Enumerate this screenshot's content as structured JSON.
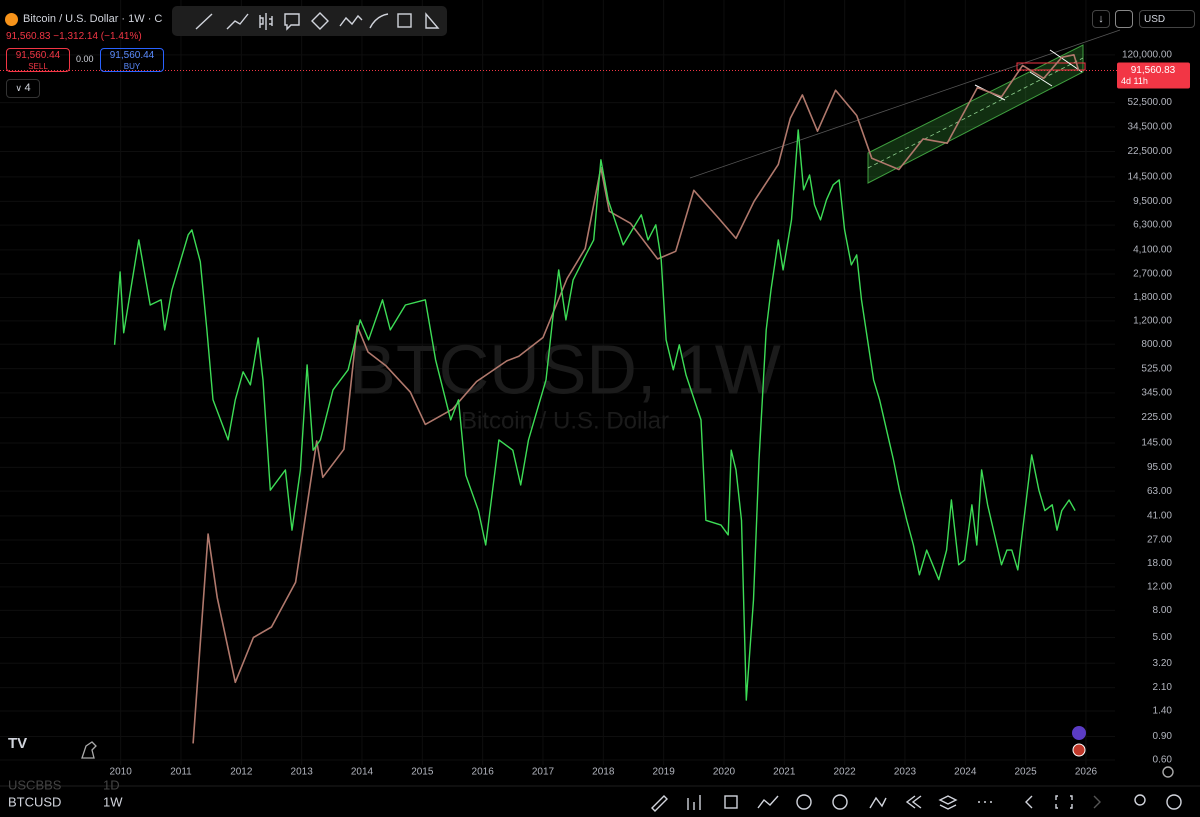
{
  "header": {
    "symbol_title": "Bitcoin / U.S. Dollar · 1W · C",
    "price_line": "91,560.83 −1,312.14 (−1.41%)",
    "sell_price": "91,560.44",
    "sell_label": "SELL",
    "spread": "0.00",
    "buy_price": "91,560.44",
    "buy_label": "BUY",
    "indicator_count": "4",
    "currency": "USD"
  },
  "chart_data": {
    "type": "line",
    "watermark_title": "BTCUSD, 1W",
    "watermark_subtitle": "Bitcoin / U.S. Dollar",
    "log_scale": true,
    "grid": true,
    "xlim": [
      2008,
      2026.73
    ],
    "xticks": [
      2010,
      2011,
      2012,
      2013,
      2014,
      2015,
      2016,
      2017,
      2018,
      2019,
      2020,
      2021,
      2022,
      2023,
      2024,
      2025,
      2026
    ],
    "ylim": [
      0.55,
      310000
    ],
    "yticks": [
      {
        "value": 120000,
        "label": "120,000.00"
      },
      {
        "value": 52500,
        "label": "52,500.00"
      },
      {
        "value": 34500,
        "label": "34,500.00"
      },
      {
        "value": 22500,
        "label": "22,500.00"
      },
      {
        "value": 14500,
        "label": "14,500.00"
      },
      {
        "value": 9500,
        "label": "9,500.00"
      },
      {
        "value": 6300,
        "label": "6,300.00"
      },
      {
        "value": 4100,
        "label": "4,100.00"
      },
      {
        "value": 2700,
        "label": "2,700.00"
      },
      {
        "value": 1800,
        "label": "1,800.00"
      },
      {
        "value": 1200,
        "label": "1,200.00"
      },
      {
        "value": 800,
        "label": "800.00"
      },
      {
        "value": 525,
        "label": "525.00"
      },
      {
        "value": 345,
        "label": "345.00"
      },
      {
        "value": 225,
        "label": "225.00"
      },
      {
        "value": 145,
        "label": "145.00"
      },
      {
        "value": 95,
        "label": "95.00"
      },
      {
        "value": 63,
        "label": "63.00"
      },
      {
        "value": 41,
        "label": "41.00"
      },
      {
        "value": 27,
        "label": "27.00"
      },
      {
        "value": 18,
        "label": "18.00"
      },
      {
        "value": 12,
        "label": "12.00"
      },
      {
        "value": 8,
        "label": "8.00"
      },
      {
        "value": 5,
        "label": "5.00"
      },
      {
        "value": 3.2,
        "label": "3.20"
      },
      {
        "value": 2.1,
        "label": "2.10"
      },
      {
        "value": 1.4,
        "label": "1.40"
      },
      {
        "value": 0.9,
        "label": "0.90"
      },
      {
        "value": 0.6,
        "label": "0.60"
      }
    ],
    "series": [
      {
        "name": "BTCUSD",
        "color": "#b0786c",
        "x": [
          2011.2,
          2011.45,
          2011.6,
          2011.9,
          2012.2,
          2012.5,
          2012.9,
          2013.25,
          2013.35,
          2013.7,
          2013.92,
          2014.1,
          2014.4,
          2014.8,
          2015.05,
          2015.5,
          2015.9,
          2016.4,
          2016.6,
          2017.0,
          2017.4,
          2017.7,
          2017.96,
          2018.1,
          2018.45,
          2018.9,
          2019.2,
          2019.5,
          2019.9,
          2020.2,
          2020.5,
          2020.9,
          2021.1,
          2021.3,
          2021.55,
          2021.85,
          2022.2,
          2022.45,
          2022.9,
          2023.3,
          2023.7,
          2024.2,
          2024.6,
          2024.95,
          2025.3,
          2025.6,
          2025.8,
          2025.88
        ],
        "values": [
          0.8,
          30,
          10,
          2.3,
          5,
          6,
          13,
          150,
          80,
          130,
          1100,
          700,
          550,
          350,
          200,
          260,
          420,
          600,
          650,
          900,
          2500,
          4200,
          17000,
          8000,
          6500,
          3500,
          4000,
          11500,
          7200,
          5000,
          9500,
          18000,
          40000,
          60000,
          32000,
          65000,
          42000,
          20000,
          16500,
          28000,
          26000,
          68000,
          58000,
          100000,
          80000,
          115000,
          120000,
          91560
        ]
      },
      {
        "name": "USCBBS",
        "color": "#3ddc56",
        "x": [
          2009.9,
          2009.99,
          2010.05,
          2010.3,
          2010.49,
          2010.67,
          2010.73,
          2010.85,
          2011.12,
          2011.18,
          2011.32,
          2011.43,
          2011.53,
          2011.78,
          2011.9,
          2012.03,
          2012.15,
          2012.28,
          2012.36,
          2012.48,
          2012.73,
          2012.84,
          2012.98,
          2013.09,
          2013.19,
          2013.31,
          2013.52,
          2013.77,
          2013.97,
          2014.11,
          2014.34,
          2014.47,
          2014.72,
          2015.05,
          2015.22,
          2015.47,
          2015.6,
          2015.72,
          2015.93,
          2016.05,
          2016.27,
          2016.5,
          2016.63,
          2016.76,
          2017.05,
          2017.16,
          2017.26,
          2017.38,
          2017.5,
          2017.71,
          2017.84,
          2017.96,
          2018.08,
          2018.33,
          2018.63,
          2018.74,
          2018.87,
          2018.96,
          2019.04,
          2019.16,
          2019.26,
          2019.37,
          2019.62,
          2019.7,
          2019.95,
          2020.07,
          2020.12,
          2020.2,
          2020.29,
          2020.37,
          2020.49,
          2020.58,
          2020.7,
          2020.78,
          2020.9,
          2020.98,
          2021.12,
          2021.23,
          2021.32,
          2021.42,
          2021.5,
          2021.6,
          2021.7,
          2021.81,
          2021.91,
          2022.0,
          2022.11,
          2022.2,
          2022.28,
          2022.48,
          2022.58,
          2022.81,
          2022.91,
          2023.03,
          2023.14,
          2023.24,
          2023.36,
          2023.56,
          2023.69,
          2023.77,
          2023.89,
          2023.99,
          2024.11,
          2024.19,
          2024.27,
          2024.37,
          2024.6,
          2024.69,
          2024.77,
          2024.87,
          2024.97,
          2025.1,
          2025.22,
          2025.32,
          2025.44,
          2025.52,
          2025.6,
          2025.72,
          2025.82
        ],
        "values": [
          793,
          2800,
          976,
          4875,
          1580,
          1727,
          1026,
          2050,
          5320,
          5800,
          3340,
          1026,
          306,
          153,
          306,
          497,
          396,
          894,
          432,
          64,
          91,
          32,
          91,
          560,
          128,
          153,
          363,
          514,
          1220,
          864,
          1727,
          1026,
          1580,
          1727,
          611,
          216,
          306,
          83,
          45,
          24.8,
          153,
          128,
          70,
          153,
          432,
          1220,
          2900,
          1220,
          2440,
          3760,
          4875,
          19500,
          9760,
          4470,
          7520,
          4875,
          6330,
          3450,
          864,
          514,
          793,
          471,
          216,
          38,
          35,
          29.5,
          128,
          91,
          38,
          1.69,
          9.6,
          108,
          1026,
          2050,
          4875,
          2900,
          6890,
          32700,
          11600,
          15000,
          8940,
          6890,
          9760,
          12650,
          13780,
          5800,
          3160,
          3760,
          1727,
          432,
          306,
          108,
          64,
          38,
          24.8,
          14.8,
          22.7,
          13.6,
          22.7,
          54,
          17.6,
          19.1,
          49.7,
          24.8,
          91,
          49.7,
          17.6,
          22.7,
          22.7,
          16.1,
          38,
          118,
          64,
          45,
          49.7,
          32,
          45,
          54,
          45
        ]
      }
    ],
    "last_price": 91560.83,
    "last_price_label": "91,560.83",
    "countdown": "4d 11h"
  },
  "footer": {
    "uscbbs_interval": "1D",
    "btcusd_interval": "1W"
  }
}
